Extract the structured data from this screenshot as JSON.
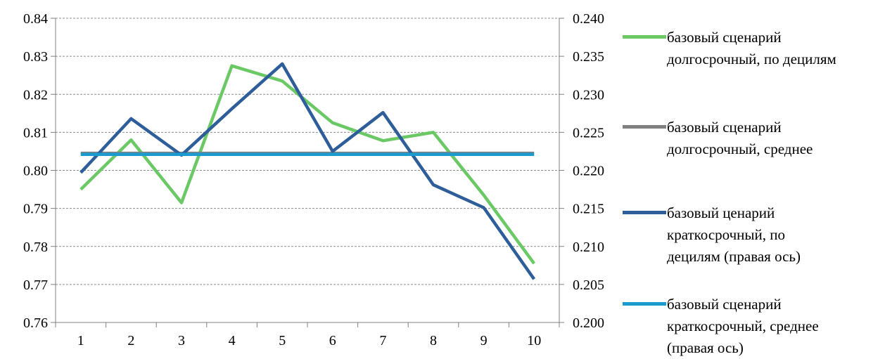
{
  "chart_data": {
    "type": "line",
    "categories": [
      "1",
      "2",
      "3",
      "4",
      "5",
      "6",
      "7",
      "8",
      "9",
      "10"
    ],
    "y_left": {
      "ylim": [
        0.76,
        0.84
      ],
      "ticks": [
        "0.76",
        "0.77",
        "0.78",
        "0.79",
        "0.80",
        "0.81",
        "0.82",
        "0.83",
        "0.84"
      ]
    },
    "y_right": {
      "ylim": [
        0.2,
        0.24
      ],
      "ticks": [
        "0.200",
        "0.205",
        "0.210",
        "0.215",
        "0.220",
        "0.225",
        "0.230",
        "0.235",
        "0.240"
      ]
    },
    "grid": true,
    "legend_position": "right",
    "series": [
      {
        "name": "базовый сценарий\nдолгосрочный, по децилям",
        "axis": "left",
        "color": "#6ac965",
        "values": [
          0.795,
          0.808,
          0.7915,
          0.8275,
          0.8235,
          0.8125,
          0.8078,
          0.81,
          0.7935,
          0.7755
        ]
      },
      {
        "name": "базовый сценарий\nдолгосрочный, среднее",
        "axis": "left",
        "color": "#808080",
        "values": [
          0.8045,
          0.8045,
          0.8045,
          0.8045,
          0.8045,
          0.8045,
          0.8045,
          0.8045,
          0.8045,
          0.8045
        ]
      },
      {
        "name": "базовый ценарий\nкраткосрочный, по\nдецилям (правая ось)",
        "axis": "right",
        "color": "#2e5e9a",
        "values": [
          0.2197,
          0.2268,
          0.222,
          0.2281,
          0.234,
          0.2225,
          0.2276,
          0.2181,
          0.2151,
          0.2057
        ]
      },
      {
        "name": "базовый сценарий\nкраткосрочный, среднее\n(правая ось)",
        "axis": "right",
        "color": "#1a9bcf",
        "values": [
          0.2221,
          0.2221,
          0.2221,
          0.2221,
          0.2221,
          0.2221,
          0.2221,
          0.2221,
          0.2221,
          0.2221
        ]
      }
    ]
  }
}
